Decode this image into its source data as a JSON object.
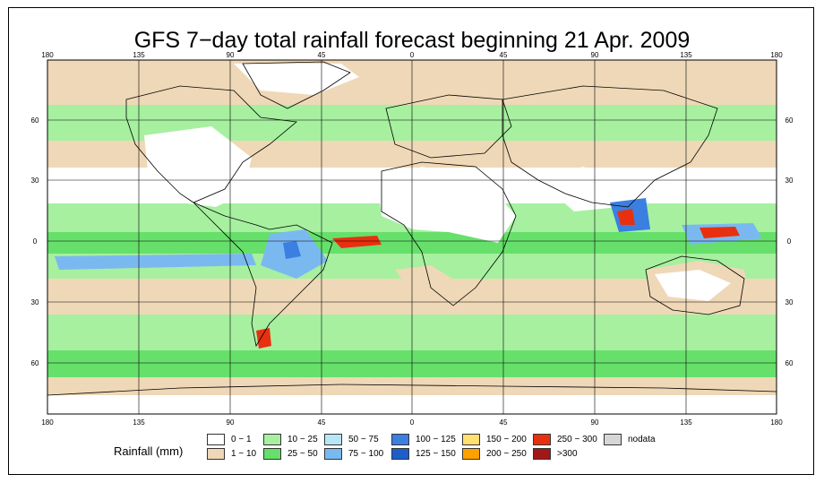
{
  "title": "GFS 7−day total rainfall forecast beginning 21 Apr. 2009",
  "longitude_labels": [
    "180",
    "135",
    "90",
    "45",
    "0",
    "45",
    "90",
    "135",
    "180"
  ],
  "latitude_labels": [
    "60",
    "30",
    "0",
    "30",
    "60"
  ],
  "legend": {
    "title": "Rainfall (mm)",
    "items": [
      {
        "label": "0 − 1",
        "color": "#ffffff"
      },
      {
        "label": "1 − 10",
        "color": "#efd8b7"
      },
      {
        "label": "10 − 25",
        "color": "#a6f0a0"
      },
      {
        "label": "25 − 50",
        "color": "#66e06a"
      },
      {
        "label": "50 − 75",
        "color": "#b7e6f8"
      },
      {
        "label": "75 − 100",
        "color": "#7ab9f0"
      },
      {
        "label": "100 − 125",
        "color": "#3b7fe0"
      },
      {
        "label": "125 − 150",
        "color": "#1e5ecc"
      },
      {
        "label": "150 − 200",
        "color": "#ffe070"
      },
      {
        "label": "200 − 250",
        "color": "#ffa000"
      },
      {
        "label": "250 − 300",
        "color": "#e83010"
      },
      {
        "label": ">300",
        "color": "#a01818"
      },
      {
        "label": "nodata",
        "color": "#d6d6d6"
      }
    ]
  }
}
